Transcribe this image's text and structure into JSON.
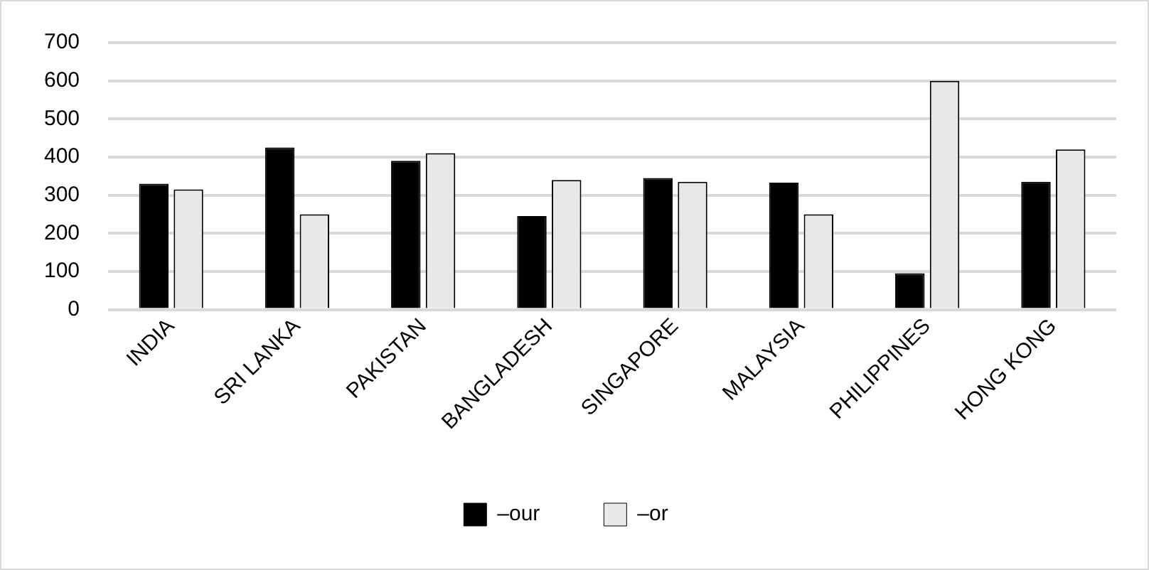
{
  "chart_data": {
    "type": "bar",
    "categories": [
      "INDIA",
      "SRI LANKA",
      "PAKISTAN",
      "BANGLADESH",
      "SINGAPORE",
      "MALAYSIA",
      "PHILIPPINES",
      "HONG KONG"
    ],
    "series": [
      {
        "name": "–our",
        "color": "#000000",
        "values": [
          330,
          425,
          390,
          245,
          345,
          333,
          95,
          335
        ]
      },
      {
        "name": "–or",
        "color": "#e8e8e8",
        "values": [
          315,
          250,
          410,
          340,
          335,
          250,
          600,
          420
        ]
      }
    ],
    "ylim": [
      0,
      700
    ],
    "yticks": [
      0,
      100,
      200,
      300,
      400,
      500,
      600,
      700
    ],
    "grid": "y",
    "legend": "bottom"
  }
}
